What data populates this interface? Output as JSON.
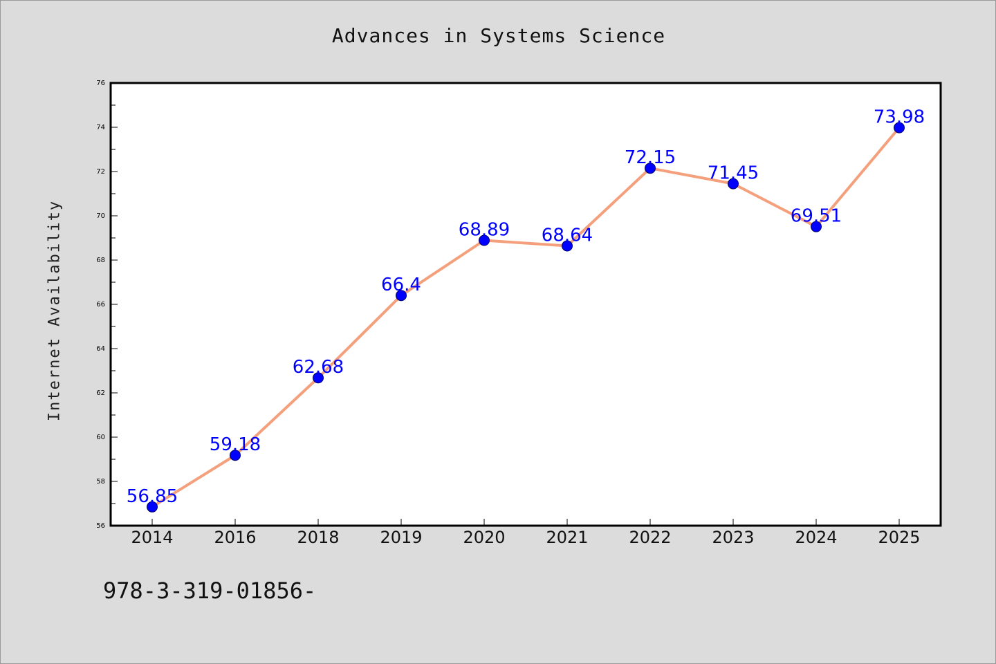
{
  "chart_data": {
    "type": "line",
    "title": "Advances in Systems Science",
    "xlabel": "",
    "ylabel": "Internet Availability",
    "categories": [
      "2014",
      "2016",
      "2018",
      "2019",
      "2020",
      "2021",
      "2022",
      "2023",
      "2024",
      "2025"
    ],
    "series": [
      {
        "values": [
          56.85,
          59.18,
          62.68,
          66.4,
          68.89,
          68.64,
          72.15,
          71.45,
          69.51,
          73.98
        ],
        "data_labels": [
          "56.85",
          "59.18",
          "62.68",
          "66.4",
          "68.89",
          "68.64",
          "72.15",
          "71.45",
          "69.51",
          "73.98"
        ]
      }
    ],
    "ylim": [
      56,
      76
    ],
    "yticks": [
      "56",
      "58",
      "60",
      "62",
      "64",
      "66",
      "68",
      "70",
      "72",
      "74",
      "76"
    ],
    "grid": false,
    "legend": "none",
    "colors": {
      "line": "#f4a07c",
      "marker": "#0000ff",
      "label": "#0000ff"
    }
  },
  "footer_text": "978-3-319-01856-"
}
